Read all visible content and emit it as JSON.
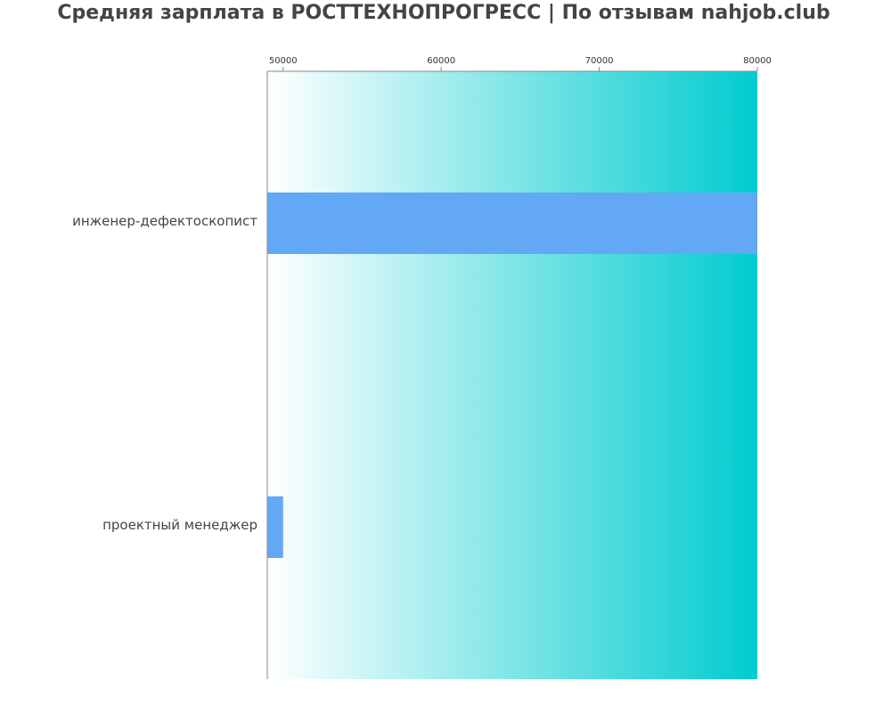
{
  "chart_data": {
    "type": "bar",
    "orientation": "horizontal",
    "title": "Средняя зарплата в РОСТТЕХНОПРОГРЕСС | По отзывам nahjob.club",
    "categories": [
      "инженер-дефектоскопист",
      "проектный менеджер"
    ],
    "values": [
      80000,
      50000
    ],
    "color": "#62a8f4",
    "background_gradient": [
      "#ffffff",
      "#00cccf"
    ],
    "xlim": [
      49000,
      80000
    ],
    "xticks": [
      50000,
      60000,
      70000,
      80000
    ]
  }
}
